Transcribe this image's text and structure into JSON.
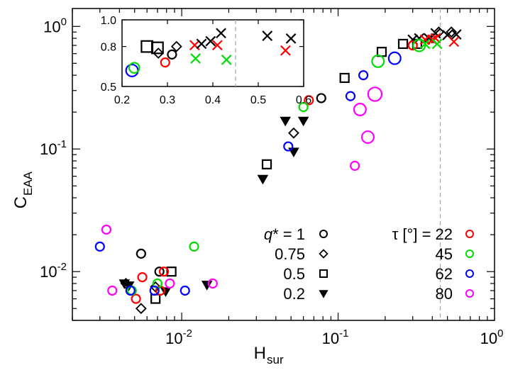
{
  "chart_data": {
    "type": "scatter",
    "title": "",
    "xlabel": "H",
    "xlabel_sub": "sur",
    "ylabel": "C",
    "ylabel_sub": "EAA",
    "xscale": "log",
    "yscale": "log",
    "xlim": [
      0.002,
      1.0
    ],
    "ylim": [
      0.004,
      1.4
    ],
    "x_ticks": [
      {
        "value": 0.01,
        "base": "10",
        "exp": "-2"
      },
      {
        "value": 0.1,
        "base": "10",
        "exp": "-1"
      },
      {
        "value": 1.0,
        "base": "10",
        "exp": "0"
      }
    ],
    "y_ticks": [
      {
        "value": 0.01,
        "base": "10",
        "exp": "-2"
      },
      {
        "value": 0.1,
        "base": "10",
        "exp": "-1"
      },
      {
        "value": 1.0,
        "base": "10",
        "exp": "0"
      }
    ],
    "reference_line_x": 0.45,
    "colors": {
      "22": "#ff0000",
      "45": "#00dd00",
      "62": "#0000ff",
      "80": "#ff00ff",
      "black": "#000000"
    },
    "legend_q": {
      "title": "q* = 1",
      "items": [
        {
          "label": "q* = 1",
          "marker": "circle"
        },
        {
          "label": "0.75",
          "marker": "diamond"
        },
        {
          "label": "0.5",
          "marker": "square"
        },
        {
          "label": "0.2",
          "marker": "triangle-down"
        }
      ]
    },
    "legend_tau": {
      "items": [
        {
          "label": "τ [°] = 22",
          "color": "#ff0000"
        },
        {
          "label": "45",
          "color": "#00dd00"
        },
        {
          "label": "62",
          "color": "#0000ff"
        },
        {
          "label": "80",
          "color": "#ff00ff"
        }
      ]
    },
    "series": [
      {
        "name": "black circles (q*=1)",
        "marker": "circle",
        "color": "#000000",
        "x": [
          0.0055,
          0.0072,
          0.078
        ],
        "y": [
          0.014,
          0.01,
          0.26
        ],
        "sizes": [
          1,
          1,
          1
        ]
      },
      {
        "name": "black diamonds (q*=0.75)",
        "marker": "diamond",
        "color": "#000000",
        "x": [
          0.0044,
          0.0055,
          0.0068,
          0.052,
          0.44,
          0.53
        ],
        "y": [
          0.008,
          0.005,
          0.0075,
          0.135,
          0.9,
          0.9
        ],
        "sizes": [
          1,
          1,
          1,
          1,
          1,
          1
        ]
      },
      {
        "name": "black squares (q*=0.5)",
        "marker": "square",
        "color": "#000000",
        "x": [
          0.0068,
          0.0086,
          0.035,
          0.11,
          0.19,
          0.26,
          0.32
        ],
        "y": [
          0.006,
          0.01,
          0.075,
          0.38,
          0.62,
          0.72,
          0.72
        ],
        "sizes": [
          1,
          1,
          1,
          1,
          1,
          1,
          1
        ]
      },
      {
        "name": "black triangles (q*=0.2)",
        "marker": "triangle-down",
        "color": "#000000",
        "x": [
          0.0043,
          0.0046,
          0.0079,
          0.0145,
          0.033,
          0.046,
          0.052,
          0.06
        ],
        "y": [
          0.008,
          0.0077,
          0.0069,
          0.0078,
          0.057,
          0.17,
          0.095,
          0.17
        ],
        "sizes": [
          1,
          1,
          1,
          1,
          1,
          1,
          1,
          1
        ]
      },
      {
        "name": "black crosses",
        "marker": "cross",
        "color": "#000000",
        "x": [
          0.3,
          0.33,
          0.38,
          0.42,
          0.5,
          0.57
        ],
        "y": [
          0.78,
          0.8,
          0.8,
          0.88,
          0.85,
          0.86
        ],
        "sizes": [
          1,
          1,
          1,
          1,
          1,
          1
        ]
      },
      {
        "name": "tau 22",
        "marker": "circle",
        "color": "#ff0000",
        "x": [
          0.0051,
          0.0056,
          0.0073,
          0.0077,
          0.065,
          0.3
        ],
        "y": [
          0.006,
          0.009,
          0.007,
          0.01,
          0.25,
          0.7
        ],
        "sizes": [
          1,
          1,
          1,
          1,
          1,
          1
        ]
      },
      {
        "name": "tau 22 crosses",
        "marker": "cross",
        "color": "#ff0000",
        "x": [
          0.36,
          0.4,
          0.42,
          0.55
        ],
        "y": [
          0.78,
          0.78,
          0.8,
          0.75
        ],
        "sizes": [
          1,
          1,
          1,
          1
        ]
      },
      {
        "name": "tau 45",
        "marker": "circle",
        "color": "#00dd00",
        "x": [
          0.0048,
          0.007,
          0.012,
          0.06,
          0.18,
          0.33
        ],
        "y": [
          0.007,
          0.008,
          0.016,
          0.22,
          0.52,
          0.7
        ],
        "sizes": [
          1,
          1,
          1,
          1,
          1.4,
          1.4
        ]
      },
      {
        "name": "tau 45 crosses",
        "marker": "cross",
        "color": "#00dd00",
        "x": [
          0.36,
          0.43
        ],
        "y": [
          0.72,
          0.72
        ],
        "sizes": [
          1,
          1
        ]
      },
      {
        "name": "tau 62",
        "marker": "circle",
        "color": "#0000ff",
        "x": [
          0.003,
          0.0047,
          0.0067,
          0.0105,
          0.048,
          0.12,
          0.145,
          0.23
        ],
        "y": [
          0.016,
          0.007,
          0.007,
          0.007,
          0.105,
          0.27,
          0.4,
          0.55
        ],
        "sizes": [
          1,
          1,
          1,
          1,
          1,
          1,
          1,
          1.4
        ]
      },
      {
        "name": "tau 80",
        "marker": "circle",
        "color": "#ff00ff",
        "x": [
          0.0033,
          0.0036,
          0.0084,
          0.0158,
          0.128,
          0.138,
          0.155,
          0.172
        ],
        "y": [
          0.022,
          0.007,
          0.008,
          0.008,
          0.073,
          0.21,
          0.125,
          0.28
        ],
        "sizes": [
          1,
          1,
          1,
          1,
          1,
          1.4,
          1.4,
          1.6
        ]
      }
    ],
    "inset": {
      "xscale": "linear",
      "yscale": "linear",
      "xlim": [
        0.2,
        0.6
      ],
      "ylim": [
        0.5,
        1.0
      ],
      "x_ticks": [
        "0.2",
        "0.3",
        "0.4",
        "0.5",
        "0.6"
      ],
      "y_ticks": [
        "0.5",
        "0.8",
        "1.0"
      ],
      "x_tick_values": [
        0.2,
        0.3,
        0.4,
        0.5,
        0.6
      ],
      "y_tick_values": [
        0.5,
        0.8,
        1.0
      ],
      "reference_line_x": 0.45,
      "series": [
        {
          "name": "inset tau 62",
          "marker": "circle",
          "color": "#0000ff",
          "x": [
            0.222
          ],
          "y": [
            0.62
          ],
          "sizes": [
            1.4
          ]
        },
        {
          "name": "inset tau 45 circle",
          "marker": "circle",
          "color": "#00dd00",
          "x": [
            0.227
          ],
          "y": [
            0.64
          ],
          "sizes": [
            1.2
          ]
        },
        {
          "name": "inset black squares",
          "marker": "square",
          "color": "#000000",
          "x": [
            0.255,
            0.278
          ],
          "y": [
            0.8,
            0.79
          ],
          "sizes": [
            1.3,
            1.3
          ]
        },
        {
          "name": "inset black circle",
          "marker": "circle",
          "color": "#000000",
          "x": [
            0.31
          ],
          "y": [
            0.74
          ],
          "sizes": [
            1
          ]
        },
        {
          "name": "inset black diamonds",
          "marker": "diamond",
          "color": "#000000",
          "x": [
            0.28,
            0.32
          ],
          "y": [
            0.75,
            0.8
          ],
          "sizes": [
            1,
            1
          ]
        },
        {
          "name": "inset tau 22 circle",
          "marker": "circle",
          "color": "#ff0000",
          "x": [
            0.295
          ],
          "y": [
            0.68
          ],
          "sizes": [
            1
          ]
        },
        {
          "name": "inset tau 22 crosses",
          "marker": "cross",
          "color": "#ff0000",
          "x": [
            0.36,
            0.41,
            0.56
          ],
          "y": [
            0.81,
            0.81,
            0.77
          ],
          "sizes": [
            1,
            1,
            1
          ]
        },
        {
          "name": "inset tau 45 crosses",
          "marker": "cross",
          "color": "#00dd00",
          "x": [
            0.362,
            0.43
          ],
          "y": [
            0.71,
            0.7
          ],
          "sizes": [
            1,
            1
          ]
        },
        {
          "name": "inset black crosses",
          "marker": "cross",
          "color": "#000000",
          "x": [
            0.375,
            0.395,
            0.418,
            0.52,
            0.572
          ],
          "y": [
            0.82,
            0.84,
            0.9,
            0.88,
            0.86
          ],
          "sizes": [
            1,
            1,
            1,
            1,
            1
          ]
        }
      ]
    }
  }
}
